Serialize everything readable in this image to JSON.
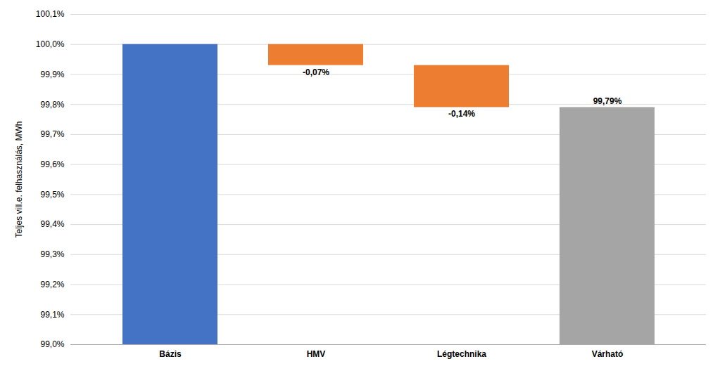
{
  "chart_data": {
    "type": "bar",
    "categories": [
      "Bázis",
      "HMV",
      "Légtechnika",
      "Várható"
    ],
    "bottoms": [
      99.0,
      99.93,
      99.79,
      99.0
    ],
    "tops": [
      100.0,
      100.0,
      99.93,
      99.79
    ],
    "colors": [
      "#4472C4",
      "#ED7D31",
      "#ED7D31",
      "#A5A5A5"
    ],
    "annotations": [
      null,
      "-0,07%",
      "-0,14%",
      "99,79%"
    ],
    "ylabel": "Teljes vill.e. felhasználás, MWh",
    "ylim": [
      99.0,
      100.1
    ],
    "yticks": [
      {
        "value": 99.0,
        "label": "99,0%"
      },
      {
        "value": 99.1,
        "label": "99,1%"
      },
      {
        "value": 99.2,
        "label": "99,2%"
      },
      {
        "value": 99.3,
        "label": "99,3%"
      },
      {
        "value": 99.4,
        "label": "99,4%"
      },
      {
        "value": 99.5,
        "label": "99,5%"
      },
      {
        "value": 99.6,
        "label": "99,6%"
      },
      {
        "value": 99.7,
        "label": "99,7%"
      },
      {
        "value": 99.8,
        "label": "99,8%"
      },
      {
        "value": 99.9,
        "label": "99,9%"
      },
      {
        "value": 100.0,
        "label": "100,0%"
      },
      {
        "value": 100.1,
        "label": "100,1%"
      }
    ],
    "grid": true
  }
}
